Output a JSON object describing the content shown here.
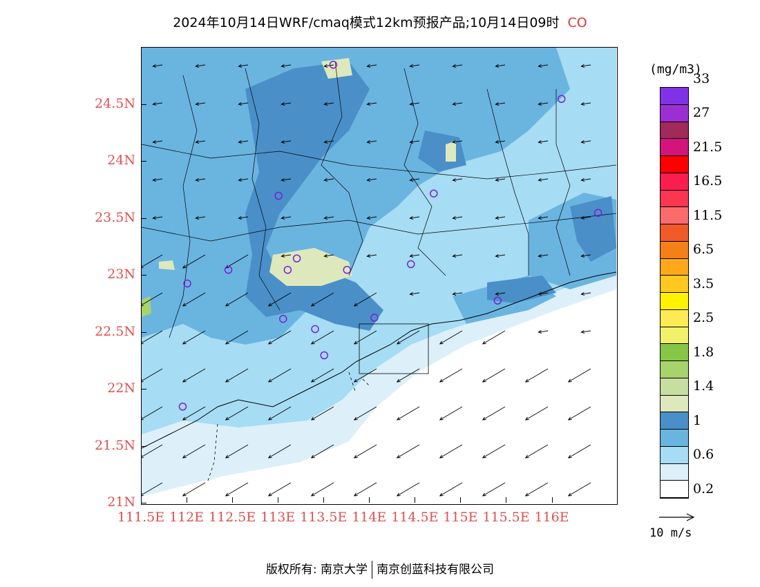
{
  "title": {
    "main": "2024年10月14日WRF/cmaq模式12km预报产品;10月14日09时",
    "species": "CO"
  },
  "map": {
    "lat_labels": [
      "24.5N",
      "24N",
      "23.5N",
      "23N",
      "22.5N",
      "22N",
      "21.5N",
      "21N"
    ],
    "lon_labels": [
      "111.5E",
      "112E",
      "112.5E",
      "113E",
      "113.5E",
      "114E",
      "114.5E",
      "115E",
      "115.5E",
      "116E"
    ],
    "extent": {
      "lon_min": 111.5,
      "lon_max": 116.7,
      "lat_min": 21.0,
      "lat_max": 25.0
    },
    "stations": [
      [
        113.6,
        24.85
      ],
      [
        116.1,
        24.55
      ],
      [
        113.0,
        23.7
      ],
      [
        114.7,
        23.72
      ],
      [
        116.5,
        23.55
      ],
      [
        112.45,
        23.05
      ],
      [
        113.2,
        23.15
      ],
      [
        113.1,
        23.05
      ],
      [
        113.75,
        23.05
      ],
      [
        114.45,
        23.1
      ],
      [
        112.0,
        22.93
      ],
      [
        115.4,
        22.78
      ],
      [
        113.05,
        22.62
      ],
      [
        114.05,
        22.63
      ],
      [
        113.4,
        22.53
      ],
      [
        113.5,
        22.3
      ],
      [
        111.95,
        21.85
      ]
    ]
  },
  "legend": {
    "unit": "(mg/m3)",
    "colors": [
      "#ffffff",
      "#ddf0fa",
      "#a6dcf4",
      "#6ab4e0",
      "#4a8fc8",
      "#dde9bc",
      "#c6dea0",
      "#a6d36c",
      "#86c646",
      "#f2f26a",
      "#ffeb55",
      "#fff200",
      "#ffc820",
      "#ffa91a",
      "#f58018",
      "#ef5a28",
      "#fa6c6c",
      "#fa3650",
      "#fa1e50",
      "#ff0000",
      "#d2147c",
      "#a02a5a",
      "#9b2fd2",
      "#8232e6"
    ],
    "ticks": [
      "0.2",
      "0.6",
      "1",
      "1.4",
      "1.8",
      "2.5",
      "3.5",
      "6.5",
      "11.5",
      "16.5",
      "21.5",
      "27",
      "33"
    ],
    "wind_reference": "10 m/s"
  },
  "footer": {
    "left": "版权所有: 南京大学",
    "right": "南京创蓝科技有限公司"
  }
}
